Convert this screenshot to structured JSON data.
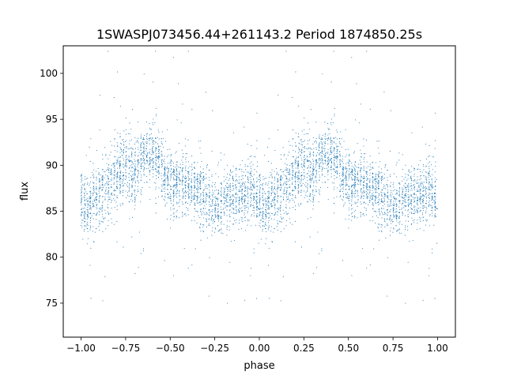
{
  "chart_data": {
    "type": "scatter",
    "title": "1SWASPJ073456.44+261143.2 Period 1874850.25s",
    "xlabel": "phase",
    "ylabel": "flux",
    "xlim": [
      -1.1,
      1.1
    ],
    "ylim": [
      71.3,
      103.0
    ],
    "xticks": [
      -1.0,
      -0.75,
      -0.5,
      -0.25,
      0.0,
      0.25,
      0.5,
      0.75,
      1.0
    ],
    "xtick_labels": [
      "−1.00",
      "−0.75",
      "−0.50",
      "−0.25",
      "0.00",
      "0.25",
      "0.50",
      "0.75",
      "1.00"
    ],
    "yticks": [
      75,
      80,
      85,
      90,
      95,
      100
    ],
    "ytick_labels": [
      "75",
      "80",
      "85",
      "90",
      "95",
      "100"
    ],
    "grid": false,
    "legend": "none",
    "marker_color": "#1f77b4",
    "profile": {
      "phase": [
        0.0,
        0.05,
        0.1,
        0.15,
        0.2,
        0.25,
        0.3,
        0.35,
        0.4,
        0.45,
        0.5,
        0.55,
        0.6,
        0.65,
        0.7,
        0.75,
        0.8,
        0.85,
        0.9,
        0.95,
        1.0
      ],
      "flux": [
        86.0,
        85.5,
        86.5,
        87.5,
        89.0,
        90.0,
        89.0,
        91.0,
        91.5,
        90.0,
        88.0,
        88.0,
        87.5,
        87.5,
        86.5,
        85.5,
        86.0,
        86.5,
        86.5,
        87.5,
        86.0
      ],
      "scatter": [
        1.6,
        1.6,
        1.7,
        1.8,
        1.9,
        2.2,
        2.0,
        1.7,
        1.6,
        1.7,
        1.8,
        1.7,
        1.7,
        1.7,
        1.6,
        1.6,
        1.6,
        1.6,
        1.7,
        1.8,
        1.6
      ]
    }
  }
}
